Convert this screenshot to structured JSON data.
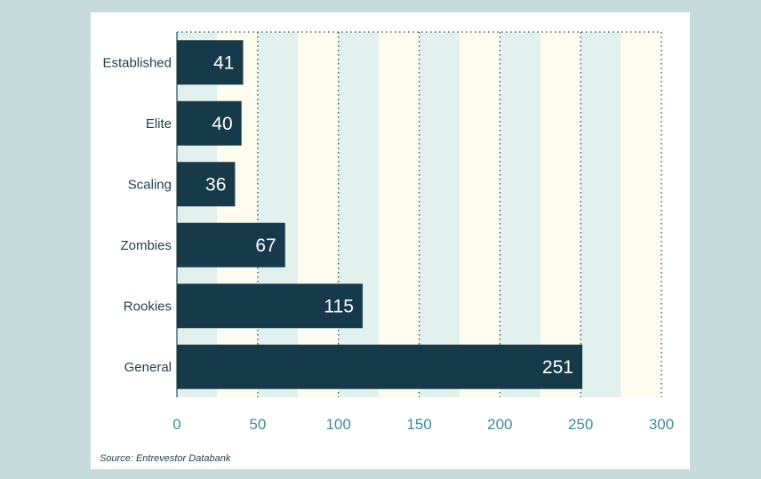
{
  "colors": {
    "bar": "#173a4a",
    "band_teal": "#e2f1ee",
    "band_cream": "#fdfcee",
    "tick_text": "#3e8a9a",
    "grid": "#2a4a55"
  },
  "chart_data": {
    "type": "bar",
    "orientation": "horizontal",
    "categories": [
      "Established",
      "Elite",
      "Scaling",
      "Zombies",
      "Rookies",
      "General"
    ],
    "values": [
      41,
      40,
      36,
      67,
      115,
      251
    ],
    "xlim": [
      0,
      300
    ],
    "xticks": [
      0,
      50,
      100,
      150,
      200,
      250,
      300
    ],
    "grid": true,
    "data_labels": true
  },
  "source": "Source: Entrevestor Databank"
}
